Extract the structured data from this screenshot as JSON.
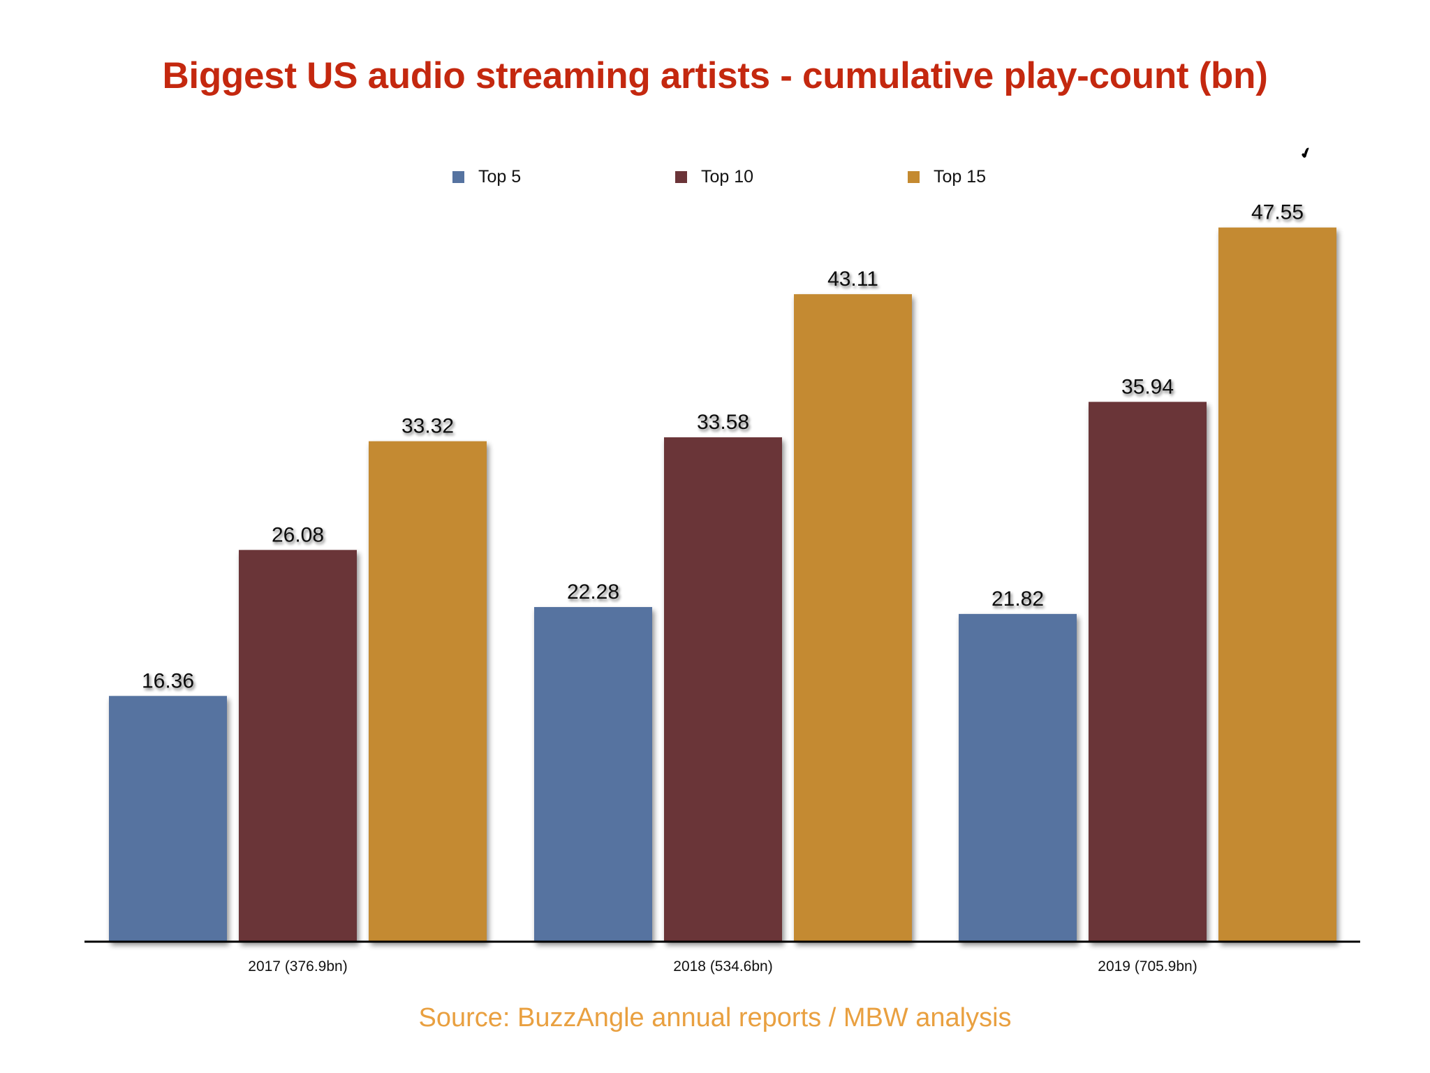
{
  "chart_data": {
    "type": "bar",
    "title": "Biggest US audio streaming artists - cumulative play-count (bn)",
    "xlabel": "",
    "ylabel": "",
    "ylim": [
      0,
      50
    ],
    "grid": false,
    "legend_position": "top-center",
    "categories": [
      "2017 (376.9bn)",
      "2018 (534.6bn)",
      "2019 (705.9bn)"
    ],
    "series": [
      {
        "name": "Top 5",
        "color": "#5673A0",
        "values": [
          16.36,
          22.28,
          21.82
        ],
        "labels": [
          "16.36",
          "22.28",
          "21.82"
        ]
      },
      {
        "name": "Top 10",
        "color": "#6B3438",
        "values": [
          26.08,
          33.58,
          35.94
        ],
        "labels": [
          "26.08",
          "33.58",
          "35.94"
        ]
      },
      {
        "name": "Top 15",
        "color": "#C48A30",
        "values": [
          33.32,
          43.11,
          47.55
        ],
        "labels": [
          "33.32",
          "43.11",
          "47.55"
        ]
      }
    ],
    "source": "Source: BuzzAngle annual reports / MBW analysis"
  },
  "colors": {
    "title": "#C4280F",
    "source": "#E9A040",
    "axis": "#000000"
  }
}
